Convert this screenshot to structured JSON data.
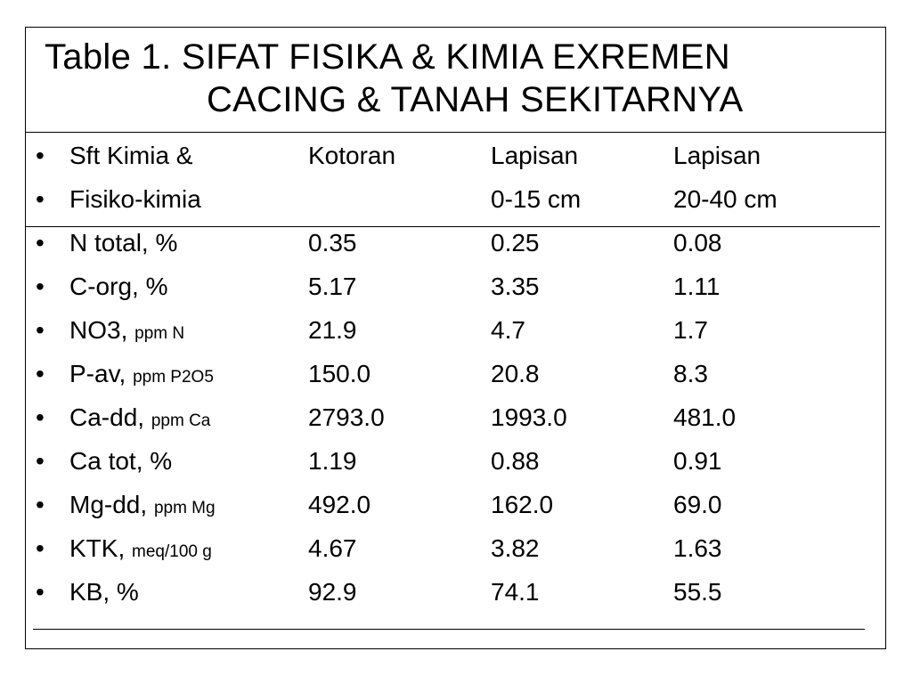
{
  "title": {
    "line1": "Table 1. SIFAT FISIKA & KIMIA EXREMEN",
    "line2": "CACING & TANAH SEKITARNYA"
  },
  "bullet": "•",
  "header": [
    [
      "Sft Kimia &",
      "Kotoran",
      "Lapisan",
      "Lapisan"
    ],
    [
      "Fisiko-kimia",
      "",
      "0-15 cm",
      "20-40 cm"
    ]
  ],
  "rows": [
    {
      "label": "N total, %",
      "unit": "",
      "values": [
        "0.35",
        "0.25",
        "0.08"
      ]
    },
    {
      "label": "C-org, %",
      "unit": "",
      "values": [
        "5.17",
        "3.35",
        "1.11"
      ]
    },
    {
      "label": "NO3, ",
      "unit": "ppm N",
      "values": [
        "21.9",
        "4.7",
        "1.7"
      ]
    },
    {
      "label": "P-av, ",
      "unit": "ppm P2O5",
      "values": [
        "150.0",
        "20.8",
        "8.3"
      ]
    },
    {
      "label": "Ca-dd, ",
      "unit": "ppm Ca",
      "values": [
        "2793.0",
        "1993.0",
        "481.0"
      ]
    },
    {
      "label": "Ca tot, %",
      "unit": "",
      "values": [
        "1.19",
        "0.88",
        "0.91"
      ]
    },
    {
      "label": "Mg-dd, ",
      "unit": "ppm Mg",
      "values": [
        "492.0",
        "162.0",
        "69.0"
      ]
    },
    {
      "label": "KTK, ",
      "unit": "meq/100 g",
      "values": [
        "4.67",
        "3.82",
        "1.63"
      ]
    },
    {
      "label": "KB, %",
      "unit": "",
      "values": [
        "92.9",
        "74.1",
        "55.5"
      ]
    }
  ]
}
